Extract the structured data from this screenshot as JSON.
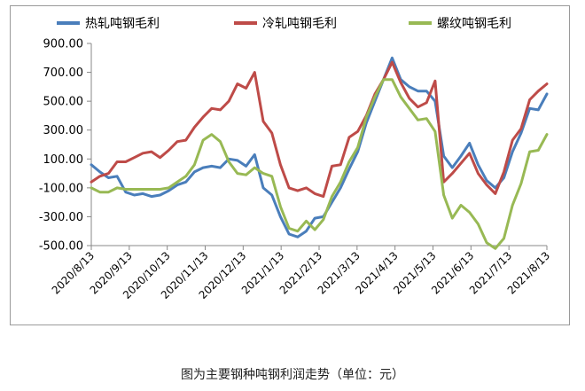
{
  "caption": "图为主要钢种吨钢利润走势（单位：元）",
  "chart_data": {
    "type": "line",
    "title": "",
    "xlabel": "",
    "ylabel": "",
    "ylim": [
      -500,
      900
    ],
    "yticks": [
      -500,
      -300,
      -100,
      100,
      300,
      500,
      700,
      900
    ],
    "ytick_labels": [
      "-500.00",
      "-300.00",
      "-100.00",
      "100.00",
      "300.00",
      "500.00",
      "700.00",
      "900.00"
    ],
    "xticks": [
      "2020/8/13",
      "2020/9/13",
      "2020/10/13",
      "2020/11/13",
      "2020/12/13",
      "2021/1/13",
      "2021/2/13",
      "2021/3/13",
      "2021/4/13",
      "2021/5/13",
      "2021/6/13",
      "2021/7/13",
      "2021/8/13"
    ],
    "grid": false,
    "legend": "top",
    "series": [
      {
        "name": "热轧吨钢毛利",
        "color": "#4a7ebb",
        "values": [
          60,
          10,
          -30,
          -20,
          -130,
          -150,
          -140,
          -160,
          -150,
          -120,
          -80,
          -60,
          10,
          40,
          50,
          40,
          100,
          90,
          50,
          130,
          -100,
          -150,
          -300,
          -420,
          -440,
          -400,
          -310,
          -300,
          -200,
          -100,
          30,
          150,
          350,
          500,
          650,
          800,
          650,
          600,
          570,
          570,
          500,
          120,
          40,
          120,
          210,
          60,
          -50,
          -100,
          -30,
          150,
          280,
          450,
          440,
          550
        ]
      },
      {
        "name": "冷轧吨钢毛利",
        "color": "#be4b48",
        "values": [
          -60,
          -20,
          0,
          80,
          80,
          110,
          140,
          150,
          110,
          160,
          220,
          230,
          320,
          390,
          450,
          440,
          500,
          620,
          590,
          700,
          360,
          280,
          60,
          -100,
          -120,
          -100,
          -140,
          -160,
          50,
          60,
          250,
          290,
          400,
          550,
          650,
          770,
          630,
          520,
          460,
          490,
          640,
          -60,
          0,
          70,
          140,
          0,
          -80,
          -140,
          10,
          230,
          310,
          510,
          570,
          620
        ]
      },
      {
        "name": "螺纹吨钢毛利",
        "color": "#98b954",
        "values": [
          -100,
          -130,
          -130,
          -100,
          -110,
          -110,
          -110,
          -110,
          -110,
          -100,
          -60,
          -20,
          60,
          230,
          270,
          220,
          80,
          0,
          -10,
          40,
          0,
          -20,
          -230,
          -380,
          -400,
          -330,
          -390,
          -320,
          -160,
          -60,
          80,
          180,
          390,
          530,
          650,
          650,
          530,
          450,
          370,
          380,
          290,
          -150,
          -310,
          -220,
          -270,
          -350,
          -480,
          -520,
          -450,
          -220,
          -70,
          150,
          160,
          270
        ]
      }
    ]
  }
}
